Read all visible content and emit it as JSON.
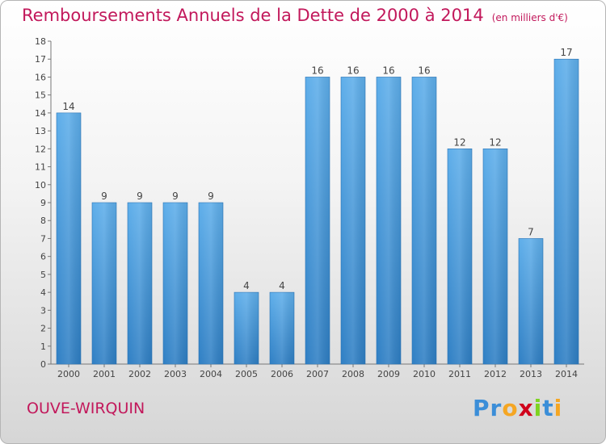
{
  "title": "Remboursements Annuels de la Dette de 2000 à 2014",
  "title_unit": "(en milliers d'€)",
  "commune": "OUVE-WIRQUIN",
  "logo": {
    "letters": [
      "P",
      "r",
      "o",
      "x",
      "i",
      "t",
      "i"
    ],
    "colors": [
      "#3b8ed8",
      "#3b8ed8",
      "#f5a623",
      "#d0021b",
      "#7ed321",
      "#3b8ed8",
      "#f5a623"
    ]
  },
  "colors": {
    "bar": "#4a9de0",
    "bar_light": "#6fb7ef",
    "bar_dark": "#2f7fc4",
    "title": "#c2185b",
    "axis": "#555555",
    "grid": "#e0e0e0"
  },
  "chart_data": {
    "type": "bar",
    "categories": [
      "2000",
      "2001",
      "2002",
      "2003",
      "2004",
      "2005",
      "2006",
      "2007",
      "2008",
      "2009",
      "2010",
      "2011",
      "2012",
      "2013",
      "2014"
    ],
    "values": [
      14,
      9,
      9,
      9,
      9,
      4,
      4,
      16,
      16,
      16,
      16,
      12,
      12,
      7,
      17
    ],
    "title": "Remboursements Annuels de la Dette de 2000 à 2014",
    "ylim": [
      0,
      18
    ],
    "yticks": [
      0,
      1,
      2,
      3,
      4,
      5,
      6,
      7,
      8,
      9,
      10,
      11,
      12,
      13,
      14,
      15,
      16,
      17,
      18
    ],
    "grid": false,
    "data_labels": true
  }
}
